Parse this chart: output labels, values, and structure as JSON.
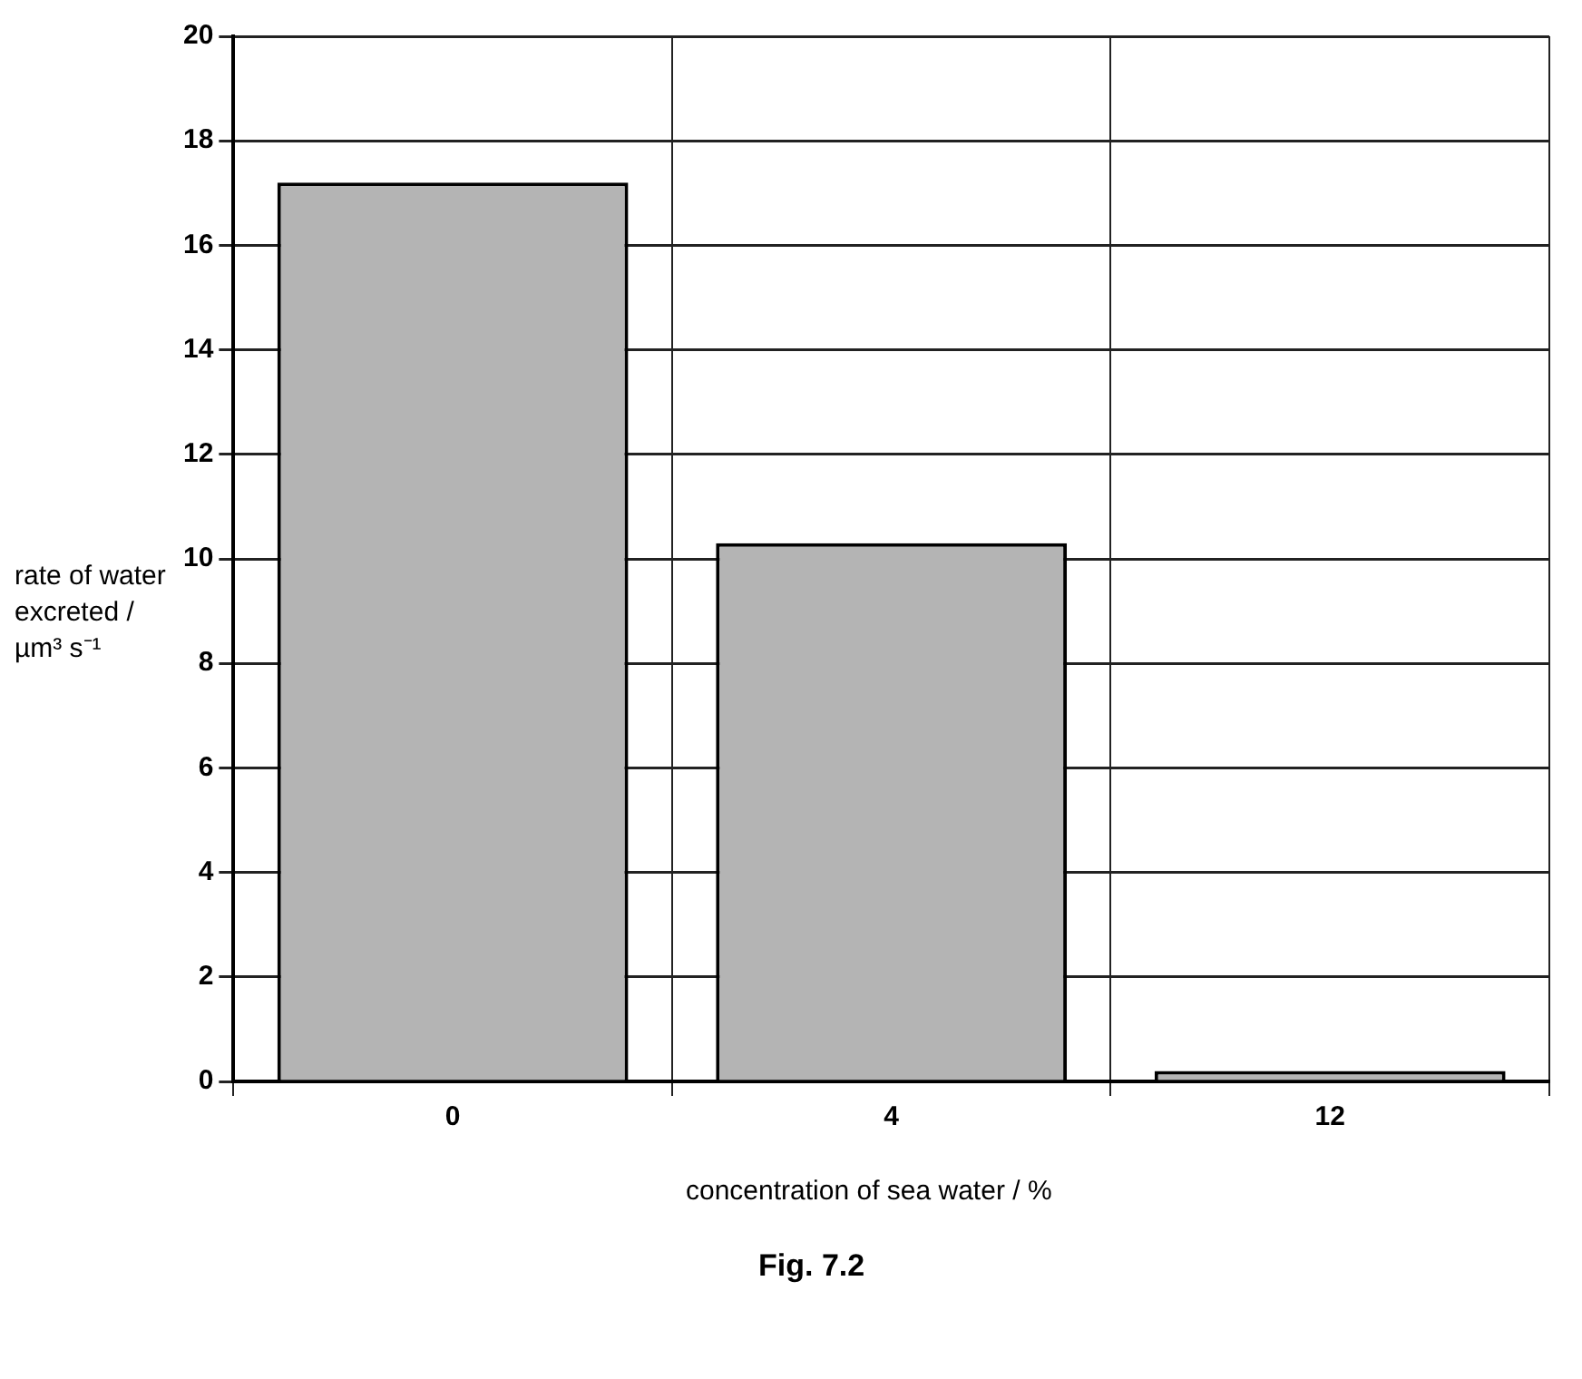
{
  "chart_data": {
    "type": "bar",
    "ylabel": "rate of water excreted / µm³ s⁻¹",
    "xlabel": "concentration of sea water / %",
    "annotations": [
      "Fig. 7.2"
    ],
    "categories": [
      "0",
      "4",
      "12"
    ],
    "values": [
      17.2,
      10.3,
      0.2
    ],
    "color": "#b4b4b4",
    "ylim": [
      0,
      20
    ],
    "yticks": [
      0,
      2,
      4,
      6,
      8,
      10,
      12,
      14,
      16,
      18,
      20
    ],
    "grid": true
  }
}
